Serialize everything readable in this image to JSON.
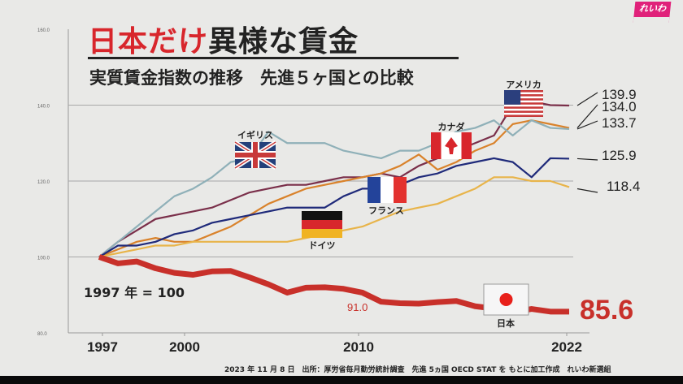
{
  "header": {
    "title_red": "日本だけ",
    "title_black": "異様な賃金",
    "subtitle": "実質賃金指数の推移　先進５ヶ国との比較",
    "logo": "れいわ"
  },
  "base_note": "1997 年 = 100",
  "footer": "2023 年 11 月 8 日　出所：厚労省毎月勤労統計調査　先進 5ヵ国 OECD STAT を もとに加工作成　れいわ新選組",
  "chart_data": {
    "type": "line",
    "title": "日本だけ異様な賃金",
    "subtitle": "実質賃金指数の推移 先進5ヶ国との比較",
    "xlabel": "",
    "ylabel": "",
    "ylim": [
      80,
      160
    ],
    "xlim": [
      1997,
      2022
    ],
    "y_ticks": [
      "80.0",
      "100.0",
      "120.0",
      "140.0",
      "160.0"
    ],
    "y_tick_values": [
      80,
      100,
      120,
      140,
      160
    ],
    "x_ticks": [
      "1997",
      "2000",
      "2010",
      "2022"
    ],
    "x_tick_values": [
      1997,
      2000,
      2010,
      2022
    ],
    "grid": true,
    "x": [
      1997,
      1998,
      1999,
      2000,
      2001,
      2002,
      2003,
      2004,
      2005,
      2006,
      2007,
      2008,
      2009,
      2010,
      2011,
      2012,
      2013,
      2014,
      2015,
      2016,
      2017,
      2018,
      2019,
      2020,
      2021,
      2022
    ],
    "series": [
      {
        "name": "アメリカ",
        "color": "#7a2f4a",
        "end_label": "139.9",
        "values": [
          100,
          104,
          107,
          110,
          111,
          112,
          113,
          115,
          117,
          118,
          119,
          119,
          120,
          121,
          121,
          122,
          121,
          124,
          126,
          128,
          130,
          132,
          140,
          141,
          140,
          139.9
        ]
      },
      {
        "name": "カナダ",
        "color": "#d9822b",
        "end_label": "134.0",
        "values": [
          100,
          102,
          104,
          105,
          104,
          104,
          106,
          108,
          111,
          114,
          116,
          118,
          119,
          120,
          121,
          122,
          124,
          127,
          123,
          125,
          128,
          130,
          135,
          136,
          135,
          134.0
        ]
      },
      {
        "name": "イギリス",
        "color": "#8fb0b8",
        "end_label": "133.7",
        "values": [
          100,
          104,
          108,
          112,
          116,
          118,
          121,
          125,
          126,
          133,
          130,
          130,
          130,
          128,
          127,
          126,
          128,
          128,
          130,
          133,
          134,
          136,
          132,
          136,
          134,
          133.7
        ]
      },
      {
        "name": "フランス",
        "color": "#1f2a7a",
        "end_label": "125.9",
        "values": [
          100,
          103,
          103,
          104,
          106,
          107,
          109,
          110,
          111,
          112,
          113,
          113,
          113,
          116,
          118,
          118,
          119,
          121,
          122,
          124,
          125,
          126,
          125,
          121,
          126,
          125.9
        ]
      },
      {
        "name": "ドイツ",
        "color": "#e8b44a",
        "end_label": "118.4",
        "values": [
          100,
          101,
          102,
          103,
          103,
          104,
          104,
          104,
          104,
          104,
          104,
          105,
          106,
          107,
          108,
          110,
          112,
          113,
          114,
          116,
          118,
          121,
          121,
          120,
          120,
          118.4
        ]
      },
      {
        "name": "日本",
        "color": "#c8302a",
        "end_label": "85.6",
        "mid_label": "91.0",
        "values": [
          100,
          98.3,
          98.8,
          97.0,
          95.8,
          95.3,
          96.2,
          96.3,
          94.6,
          92.8,
          90.6,
          91.9,
          92.0,
          91.6,
          90.6,
          88.2,
          87.8,
          87.7,
          88.1,
          88.4,
          87.0,
          86.4,
          85.4,
          86.3,
          85.6,
          85.6
        ]
      }
    ]
  }
}
